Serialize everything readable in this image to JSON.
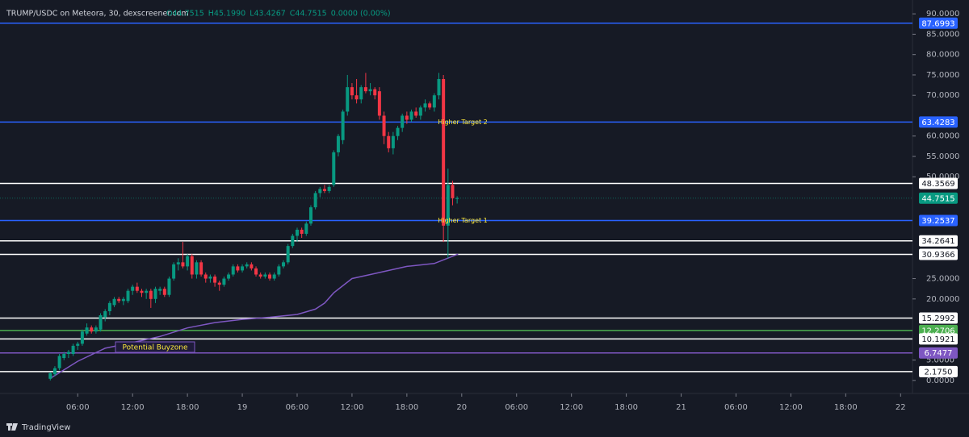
{
  "chart_data": {
    "type": "candlestick",
    "title": "TRUMP/USDC on Meteora, 30, dexscreener.com",
    "ohlc_legend": [
      "O44.7515",
      "H45.1990",
      "L43.4267",
      "C44.7515",
      "0.0000 (0.00%)"
    ],
    "brand": "TradingView",
    "background": "#161a25",
    "up_color": "#089981",
    "down_color": "#f23645",
    "xlim": [
      -2.5,
      97.3
    ],
    "xticks": [
      {
        "value": 6,
        "label": "06:00"
      },
      {
        "value": 12,
        "label": "12:00"
      },
      {
        "value": 18,
        "label": "18:00"
      },
      {
        "value": 24,
        "label": "19"
      },
      {
        "value": 30,
        "label": "06:00"
      },
      {
        "value": 36,
        "label": "12:00"
      },
      {
        "value": 42,
        "label": "18:00"
      },
      {
        "value": 48,
        "label": "20"
      },
      {
        "value": 54,
        "label": "06:00"
      },
      {
        "value": 60,
        "label": "12:00"
      },
      {
        "value": 66,
        "label": "18:00"
      },
      {
        "value": 72,
        "label": "21"
      },
      {
        "value": 78,
        "label": "06:00"
      },
      {
        "value": 84,
        "label": "12:00"
      },
      {
        "value": 90,
        "label": "18:00"
      },
      {
        "value": 96,
        "label": "22"
      }
    ],
    "ylim": [
      -3.2,
      93.4
    ],
    "yticks": [
      {
        "value": 0,
        "label": "0.0000"
      },
      {
        "value": 5,
        "label": "5.0000"
      },
      {
        "value": 20,
        "label": "20.0000"
      },
      {
        "value": 25,
        "label": "25.0000"
      },
      {
        "value": 50,
        "label": "50.0000"
      },
      {
        "value": 55,
        "label": "55.0000"
      },
      {
        "value": 60,
        "label": "60.0000"
      },
      {
        "value": 70,
        "label": "70.0000"
      },
      {
        "value": 75,
        "label": "75.0000"
      },
      {
        "value": 80,
        "label": "80.0000"
      },
      {
        "value": 85,
        "label": "85.0000"
      },
      {
        "value": 90,
        "label": "90.0000"
      }
    ],
    "x": [
      3,
      3.5,
      4,
      4.5,
      5,
      5.5,
      6,
      6.5,
      7,
      7.5,
      8,
      8.5,
      9,
      9.5,
      10,
      10.5,
      11,
      11.5,
      12,
      12.5,
      13,
      13.5,
      14,
      14.5,
      15,
      15.5,
      16,
      16.5,
      17,
      17.5,
      18,
      18.5,
      19,
      19.5,
      20,
      20.5,
      21,
      21.5,
      22,
      22.5,
      23,
      23.5,
      24,
      24.5,
      25,
      25.5,
      26,
      26.5,
      27,
      27.5,
      28,
      28.5,
      29,
      29.5,
      30,
      30.5,
      31,
      31.5,
      32,
      32.5,
      33,
      33.5,
      34,
      34.5,
      35,
      35.5,
      36,
      36.5,
      37,
      37.5,
      38,
      38.5,
      39,
      39.5,
      40,
      40.5,
      41,
      41.5,
      42,
      42.5,
      43,
      43.5,
      44,
      44.5,
      45,
      45.5,
      46,
      46.5,
      47,
      47.5
    ],
    "ohlc": [
      [
        0.4,
        2,
        0,
        1.8
      ],
      [
        1.5,
        3.5,
        1,
        3
      ],
      [
        3,
        6.5,
        2.5,
        6
      ],
      [
        5.5,
        7,
        5,
        6.5
      ],
      [
        6.5,
        7.5,
        5.5,
        7
      ],
      [
        6.5,
        9,
        6,
        8.5
      ],
      [
        8.5,
        9.5,
        7.5,
        9
      ],
      [
        9,
        12.5,
        8.5,
        12
      ],
      [
        11.5,
        14,
        11,
        13
      ],
      [
        13,
        13.5,
        11.5,
        12
      ],
      [
        12,
        13.5,
        11.5,
        13
      ],
      [
        12.5,
        16.5,
        12,
        16
      ],
      [
        15.5,
        17.5,
        14.5,
        17
      ],
      [
        17,
        19.5,
        16,
        19
      ],
      [
        18.5,
        20.5,
        18,
        20
      ],
      [
        20,
        20.5,
        19,
        19.5
      ],
      [
        19.5,
        20.5,
        18.5,
        20
      ],
      [
        19.5,
        22.5,
        19,
        22
      ],
      [
        22,
        23.5,
        21,
        23
      ],
      [
        23,
        24,
        21.5,
        22
      ],
      [
        22,
        22.5,
        20.5,
        21.5
      ],
      [
        21.5,
        22.5,
        20,
        22
      ],
      [
        22,
        22.5,
        17.8,
        20
      ],
      [
        20,
        23,
        19,
        22.5
      ],
      [
        22,
        23,
        21,
        22.5
      ],
      [
        22.5,
        23,
        20.5,
        21
      ],
      [
        21,
        25.5,
        20.5,
        25
      ],
      [
        25,
        29,
        24.5,
        28.5
      ],
      [
        28.5,
        30,
        27,
        29
      ],
      [
        29,
        34,
        27.5,
        28
      ],
      [
        28,
        31,
        27,
        30.5
      ],
      [
        30.5,
        31,
        25,
        26
      ],
      [
        26,
        29.5,
        25,
        29
      ],
      [
        29,
        29.5,
        25.5,
        26
      ],
      [
        26,
        26.5,
        24,
        25
      ],
      [
        25,
        26,
        24,
        25.5
      ],
      [
        25.5,
        26,
        23,
        24
      ],
      [
        24,
        24.5,
        22,
        23.5
      ],
      [
        23.5,
        25.5,
        23,
        25
      ],
      [
        25,
        26.5,
        24.5,
        26
      ],
      [
        26,
        28.5,
        25.5,
        28
      ],
      [
        28,
        28.5,
        26.5,
        27
      ],
      [
        27,
        28.5,
        26.5,
        28
      ],
      [
        28,
        29,
        27.5,
        28.5
      ],
      [
        28.5,
        29,
        27,
        27.5
      ],
      [
        27.5,
        28,
        25.5,
        26
      ],
      [
        26,
        26.5,
        25,
        25.5
      ],
      [
        25.5,
        26.5,
        25,
        26
      ],
      [
        26,
        26.5,
        24.5,
        25
      ],
      [
        25,
        26.5,
        24.5,
        26
      ],
      [
        26,
        28.5,
        25.5,
        28
      ],
      [
        28,
        29.5,
        27.5,
        29
      ],
      [
        29,
        33.5,
        28.5,
        33
      ],
      [
        33,
        36,
        32.5,
        35.5
      ],
      [
        35.5,
        37.5,
        34,
        37
      ],
      [
        37,
        37.5,
        35,
        36
      ],
      [
        36,
        39,
        35.5,
        38.5
      ],
      [
        38.5,
        43,
        38,
        42.5
      ],
      [
        42.5,
        46.5,
        42,
        46
      ],
      [
        46,
        47.5,
        45,
        47
      ],
      [
        47,
        48,
        46,
        46.5
      ],
      [
        46.5,
        48,
        46,
        47.5
      ],
      [
        48,
        56.5,
        47.5,
        56
      ],
      [
        56,
        60.5,
        55,
        60
      ],
      [
        59,
        66.5,
        58,
        66
      ],
      [
        66,
        75,
        65,
        72
      ],
      [
        72,
        73,
        69,
        70
      ],
      [
        70,
        74,
        68,
        69
      ],
      [
        69,
        72.5,
        68,
        72
      ],
      [
        72,
        75.5,
        70.5,
        71
      ],
      [
        71,
        73,
        70,
        71.5
      ],
      [
        71.5,
        72,
        69,
        70
      ],
      [
        71,
        72,
        64,
        65
      ],
      [
        65,
        66,
        58,
        60
      ],
      [
        60,
        61,
        56,
        57
      ],
      [
        57,
        61,
        55.5,
        60
      ],
      [
        60,
        62.5,
        59,
        62
      ],
      [
        62,
        65.5,
        61,
        65
      ],
      [
        65,
        66,
        63,
        64
      ],
      [
        64,
        66.5,
        63.5,
        66
      ],
      [
        66,
        67,
        64.5,
        65
      ],
      [
        65,
        67.5,
        64,
        67
      ],
      [
        67,
        69,
        66,
        68
      ],
      [
        68,
        68.5,
        66.5,
        67
      ],
      [
        67,
        70.5,
        66,
        70
      ],
      [
        70,
        75.5,
        69,
        74
      ],
      [
        74,
        75,
        34,
        38
      ],
      [
        38,
        52,
        30,
        48
      ],
      [
        48,
        49,
        43,
        44.75
      ],
      [
        44.7515,
        45.199,
        43.4267,
        44.7515
      ]
    ],
    "average_line": {
      "color": "#7e57c2",
      "x": [
        3,
        6,
        9,
        12,
        15,
        18,
        21,
        24,
        27,
        30,
        32,
        33,
        34,
        36,
        38,
        42,
        45,
        47.6
      ],
      "values": [
        0.5,
        4.7,
        7.9,
        9.3,
        10.8,
        12.9,
        14.2,
        15,
        15.5,
        16.2,
        17.5,
        19,
        21.5,
        25,
        26,
        28,
        28.7,
        31
      ]
    },
    "levels": [
      {
        "value": 87.6993,
        "label": "87.6993",
        "color": "#2962ff"
      },
      {
        "value": 63.4283,
        "label": "63.4283",
        "color": "#2962ff"
      },
      {
        "value": 48.3569,
        "label": "48.3569",
        "color": "#ffffff"
      },
      {
        "value": 44.7515,
        "label": "44.7515",
        "color": "#089981",
        "style": "dotted"
      },
      {
        "value": 39.2537,
        "label": "39.2537",
        "color": "#2962ff"
      },
      {
        "value": 34.2641,
        "label": "34.2641",
        "color": "#ffffff"
      },
      {
        "value": 30.9366,
        "label": "30.9366",
        "color": "#ffffff"
      },
      {
        "value": 15.2992,
        "label": "15.2992",
        "color": "#ffffff"
      },
      {
        "value": 12.2706,
        "label": "12.2706",
        "color": "#4caf50"
      },
      {
        "value": 10.1921,
        "label": "10.1921",
        "color": "#ffffff"
      },
      {
        "value": 6.7477,
        "label": "6.7477",
        "color": "#7e57c2"
      },
      {
        "value": 2.175,
        "label": "2.1750",
        "color": "#ffffff"
      }
    ],
    "annotations": [
      "Higher Target 2",
      "Higher Target 1",
      "Potential Buyzone"
    ]
  }
}
